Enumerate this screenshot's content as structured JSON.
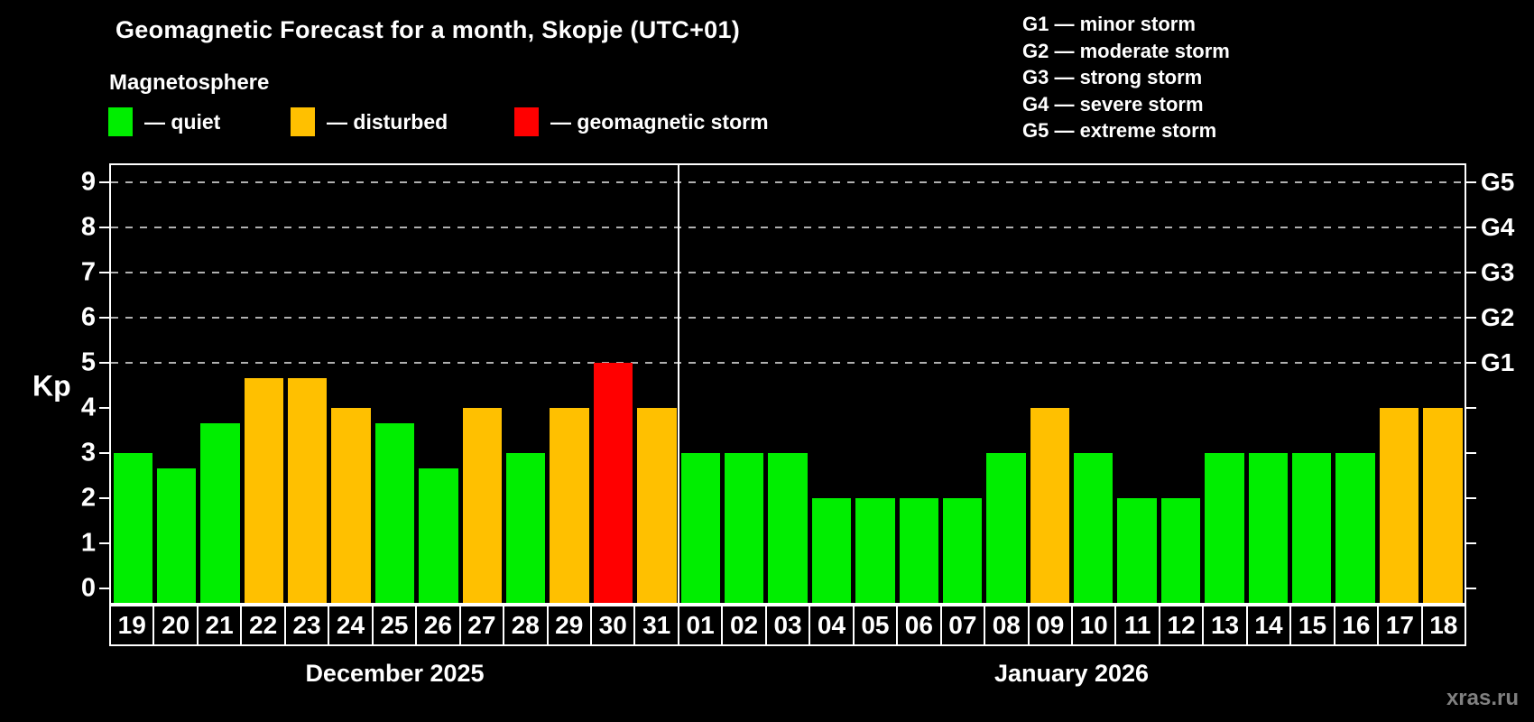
{
  "header": {
    "title": "Geomagnetic Forecast for a month, Skopje (UTC+01)",
    "subtitle": "Magnetosphere"
  },
  "legend": [
    {
      "name": "quiet",
      "label": "— quiet",
      "color": "#00ee00"
    },
    {
      "name": "disturbed",
      "label": "— disturbed",
      "color": "#ffc000"
    },
    {
      "name": "storm",
      "label": "— geomagnetic storm",
      "color": "#ff0000"
    }
  ],
  "storm_scale_legend": [
    "G1 — minor storm",
    "G2 — moderate storm",
    "G3 — strong storm",
    "G4 — severe storm",
    "G5 — extreme storm"
  ],
  "watermark": "xras.ru",
  "chart_data": {
    "type": "bar",
    "title": "Geomagnetic Forecast for a month, Skopje (UTC+01)",
    "ylabel_left": "Kp",
    "ylim": [
      0,
      9
    ],
    "grid": "dashed horizontal at storm levels",
    "gridlines_at": [
      5,
      6,
      7,
      8,
      9
    ],
    "yticks_left": [
      0,
      1,
      2,
      3,
      4,
      5,
      6,
      7,
      8,
      9
    ],
    "yticks_right": [
      {
        "kp": 5,
        "label": "G1"
      },
      {
        "kp": 6,
        "label": "G2"
      },
      {
        "kp": 7,
        "label": "G3"
      },
      {
        "kp": 8,
        "label": "G4"
      },
      {
        "kp": 9,
        "label": "G5"
      }
    ],
    "colors": {
      "quiet": "#00ee00",
      "disturbed": "#ffc000",
      "storm": "#ff0000"
    },
    "months": [
      {
        "label": "December 2025",
        "days": [
          {
            "day": "19",
            "kp": 3.0,
            "status": "quiet"
          },
          {
            "day": "20",
            "kp": 2.67,
            "status": "quiet"
          },
          {
            "day": "21",
            "kp": 3.67,
            "status": "quiet"
          },
          {
            "day": "22",
            "kp": 4.67,
            "status": "disturbed"
          },
          {
            "day": "23",
            "kp": 4.67,
            "status": "disturbed"
          },
          {
            "day": "24",
            "kp": 4.0,
            "status": "disturbed"
          },
          {
            "day": "25",
            "kp": 3.67,
            "status": "quiet"
          },
          {
            "day": "26",
            "kp": 2.67,
            "status": "quiet"
          },
          {
            "day": "27",
            "kp": 4.0,
            "status": "disturbed"
          },
          {
            "day": "28",
            "kp": 3.0,
            "status": "quiet"
          },
          {
            "day": "29",
            "kp": 4.0,
            "status": "disturbed"
          },
          {
            "day": "30",
            "kp": 5.0,
            "status": "storm"
          },
          {
            "day": "31",
            "kp": 4.0,
            "status": "disturbed"
          }
        ]
      },
      {
        "label": "January 2026",
        "days": [
          {
            "day": "01",
            "kp": 3.0,
            "status": "quiet"
          },
          {
            "day": "02",
            "kp": 3.0,
            "status": "quiet"
          },
          {
            "day": "03",
            "kp": 3.0,
            "status": "quiet"
          },
          {
            "day": "04",
            "kp": 2.0,
            "status": "quiet"
          },
          {
            "day": "05",
            "kp": 2.0,
            "status": "quiet"
          },
          {
            "day": "06",
            "kp": 2.0,
            "status": "quiet"
          },
          {
            "day": "07",
            "kp": 2.0,
            "status": "quiet"
          },
          {
            "day": "08",
            "kp": 3.0,
            "status": "quiet"
          },
          {
            "day": "09",
            "kp": 4.0,
            "status": "disturbed"
          },
          {
            "day": "10",
            "kp": 3.0,
            "status": "quiet"
          },
          {
            "day": "11",
            "kp": 2.0,
            "status": "quiet"
          },
          {
            "day": "12",
            "kp": 2.0,
            "status": "quiet"
          },
          {
            "day": "13",
            "kp": 3.0,
            "status": "quiet"
          },
          {
            "day": "14",
            "kp": 3.0,
            "status": "quiet"
          },
          {
            "day": "15",
            "kp": 3.0,
            "status": "quiet"
          },
          {
            "day": "16",
            "kp": 3.0,
            "status": "quiet"
          },
          {
            "day": "17",
            "kp": 4.0,
            "status": "disturbed"
          },
          {
            "day": "18",
            "kp": 4.0,
            "status": "disturbed"
          }
        ]
      }
    ]
  }
}
